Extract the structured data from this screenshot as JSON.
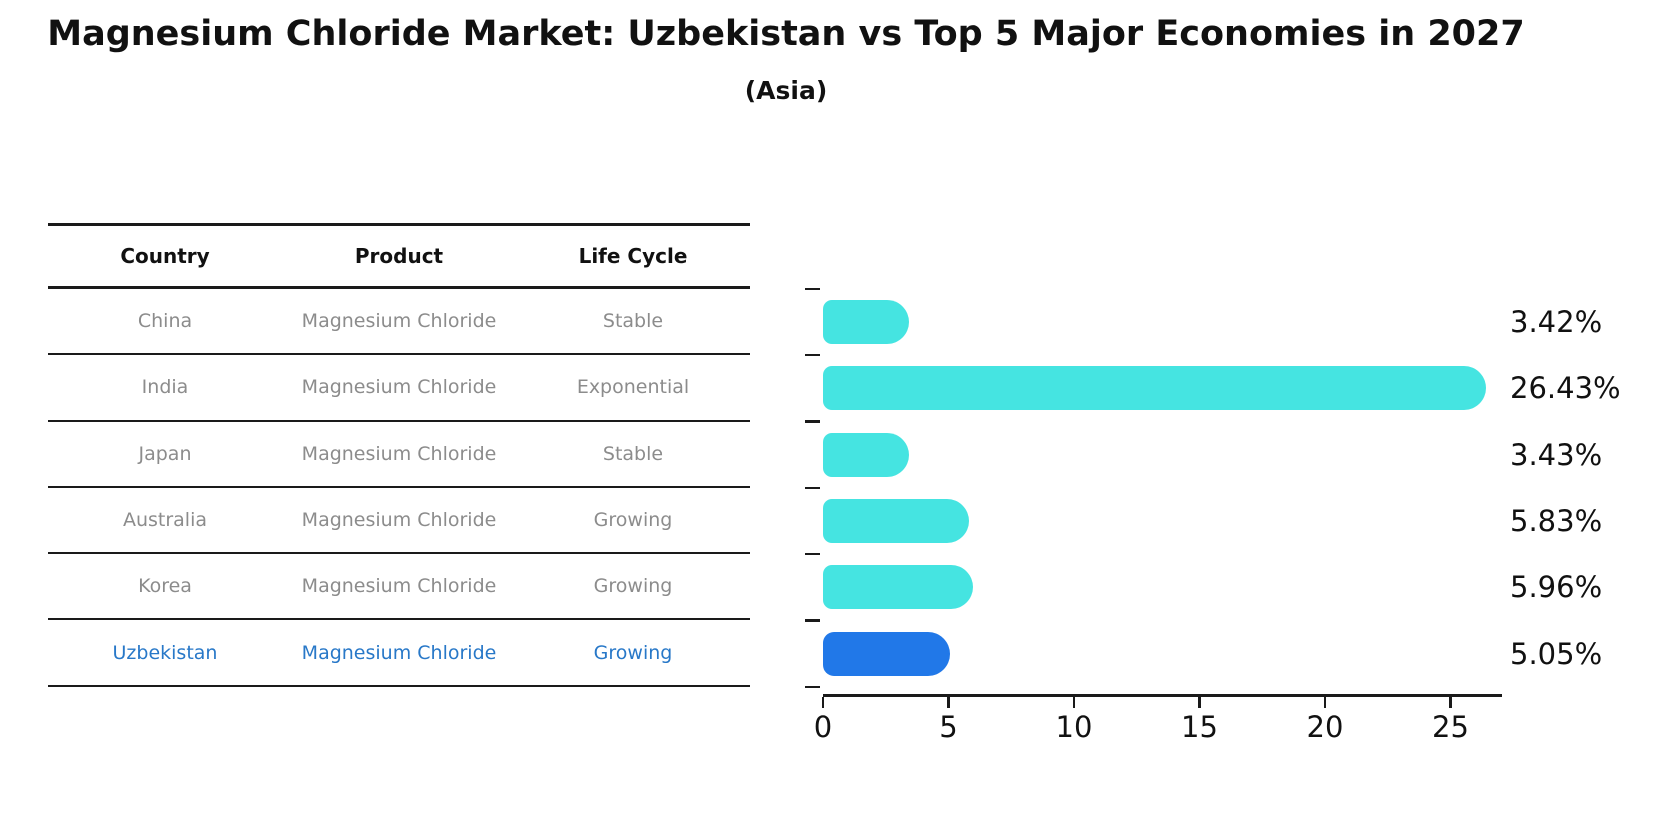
{
  "header": {
    "title": "Magnesium Chloride Market: Uzbekistan vs Top 5 Major Economies in 2027",
    "subtitle": "(Asia)"
  },
  "table": {
    "headers": [
      "Country",
      "Product",
      "Life Cycle"
    ],
    "rows": [
      {
        "country": "China",
        "product": "Magnesium Chloride",
        "life_cycle": "Stable",
        "highlight": false
      },
      {
        "country": "India",
        "product": "Magnesium Chloride",
        "life_cycle": "Exponential",
        "highlight": false
      },
      {
        "country": "Japan",
        "product": "Magnesium Chloride",
        "life_cycle": "Stable",
        "highlight": false
      },
      {
        "country": "Australia",
        "product": "Magnesium Chloride",
        "life_cycle": "Growing",
        "highlight": false
      },
      {
        "country": "Korea",
        "product": "Magnesium Chloride",
        "life_cycle": "Growing",
        "highlight": false
      },
      {
        "country": "Uzbekistan",
        "product": "Magnesium Chloride",
        "life_cycle": "Growing",
        "highlight": true
      }
    ]
  },
  "chart_data": {
    "type": "bar",
    "orientation": "horizontal",
    "title": "Magnesium Chloride Market: Uzbekistan vs Top 5 Major Economies in 2027",
    "subtitle": "(Asia)",
    "categories": [
      "China",
      "India",
      "Japan",
      "Australia",
      "Korea",
      "Uzbekistan"
    ],
    "values": [
      3.42,
      26.43,
      3.43,
      5.83,
      5.96,
      5.05
    ],
    "value_labels": [
      "3.42%",
      "26.43%",
      "3.43%",
      "5.83%",
      "5.96%",
      "5.05%"
    ],
    "highlight_index": 5,
    "xticks": [
      0,
      5,
      10,
      15,
      20,
      25
    ],
    "xlim": [
      0,
      27.8
    ],
    "xlabel": "",
    "ylabel": "",
    "grid": false,
    "legend": false
  },
  "colors": {
    "bar": "#45E4E1",
    "highlight_bar": "#2178E8",
    "highlight_text": "#2878C8",
    "cell_text": "#8C8C8C",
    "header_text": "#111111",
    "axis": "#1A1A1A"
  }
}
